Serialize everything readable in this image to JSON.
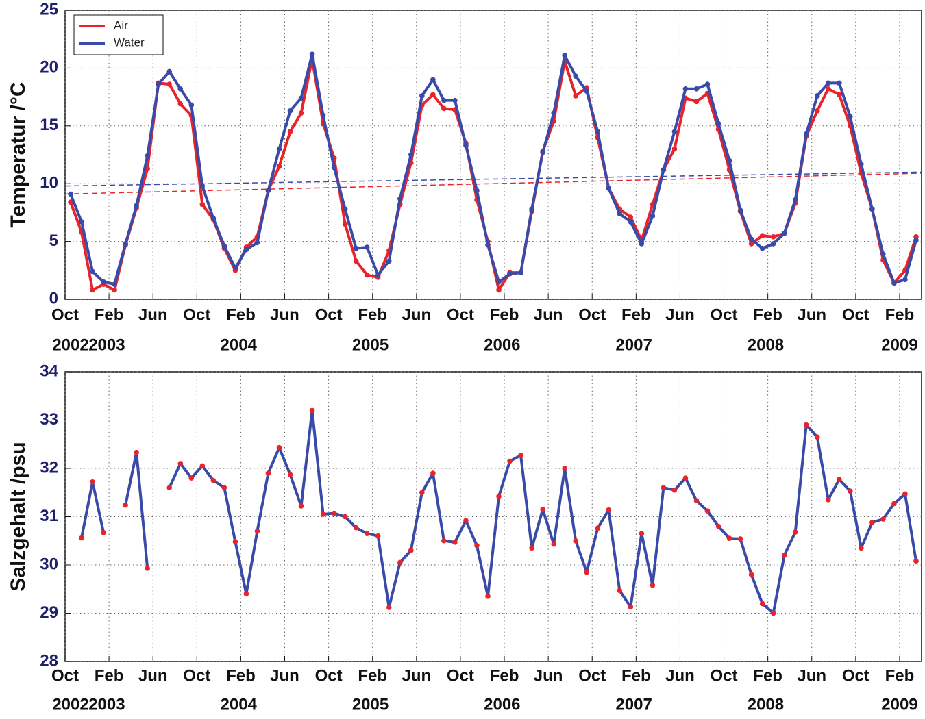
{
  "chart_data": [
    {
      "type": "line",
      "ylabel": "Temperatur /°C",
      "x": [
        0.5,
        1.5,
        2.5,
        3.5,
        4.5,
        5.5,
        6.5,
        7.5,
        8.5,
        9.5,
        10.5,
        11.5,
        12.5,
        13.5,
        14.5,
        15.5,
        16.5,
        17.5,
        18.5,
        19.5,
        20.5,
        21.5,
        22.5,
        23.5,
        24.5,
        25.5,
        26.5,
        27.5,
        28.5,
        29.5,
        30.5,
        31.5,
        32.5,
        33.5,
        34.5,
        35.5,
        36.5,
        37.5,
        38.5,
        39.5,
        40.5,
        41.5,
        42.5,
        43.5,
        44.5,
        45.5,
        46.5,
        47.5,
        48.5,
        49.5,
        50.5,
        51.5,
        52.5,
        53.5,
        54.5,
        55.5,
        56.5,
        57.5,
        58.5,
        59.5,
        60.5,
        61.5,
        62.5,
        63.5,
        64.5,
        65.5,
        66.5,
        67.5,
        68.5,
        69.5,
        70.5,
        71.5,
        72.5,
        73.5,
        74.5,
        75.5,
        76.5,
        77.5
      ],
      "series": [
        {
          "name": "Air",
          "color": "#e8232a",
          "values": [
            8.4,
            5.8,
            0.8,
            1.3,
            0.8,
            4.7,
            7.9,
            11.3,
            18.7,
            18.6,
            16.9,
            15.9,
            8.2,
            6.9,
            4.4,
            2.5,
            4.5,
            5.4,
            9.4,
            11.5,
            14.5,
            16.1,
            20.8,
            15.2,
            12.2,
            6.5,
            3.3,
            2.1,
            1.9,
            4.2,
            8.2,
            11.8,
            16.8,
            17.7,
            16.5,
            16.4,
            13.5,
            8.6,
            5.0,
            0.8,
            2.3,
            2.3,
            7.6,
            12.8,
            15.4,
            20.6,
            17.6,
            18.3,
            14.0,
            9.6,
            7.8,
            7.1,
            5.1,
            8.2,
            11.2,
            13.0,
            17.4,
            17.1,
            17.8,
            14.7,
            11.2,
            7.6,
            4.8,
            5.5,
            5.4,
            5.7,
            8.3,
            14.1,
            16.3,
            18.2,
            17.7,
            15.0,
            10.9,
            7.8,
            3.4,
            1.4,
            2.5,
            5.4
          ]
        },
        {
          "name": "Water",
          "color": "#3a4aa8",
          "values": [
            9.1,
            6.7,
            2.4,
            1.5,
            1.3,
            4.8,
            8.1,
            12.4,
            18.6,
            19.7,
            18.2,
            16.8,
            9.8,
            7.0,
            4.6,
            2.7,
            4.3,
            4.9,
            9.4,
            13.0,
            16.3,
            17.4,
            21.2,
            15.9,
            11.4,
            7.8,
            4.4,
            4.5,
            2.1,
            3.3,
            8.7,
            12.5,
            17.6,
            19.0,
            17.2,
            17.2,
            13.3,
            9.4,
            4.7,
            1.5,
            2.2,
            2.3,
            7.8,
            12.7,
            16.1,
            21.1,
            19.3,
            18.0,
            14.5,
            9.6,
            7.4,
            6.7,
            4.8,
            7.2,
            11.2,
            14.5,
            18.2,
            18.2,
            18.6,
            15.2,
            12.0,
            7.7,
            5.2,
            4.4,
            4.8,
            5.7,
            8.6,
            14.3,
            17.6,
            18.7,
            18.7,
            15.8,
            11.7,
            7.8,
            3.9,
            1.4,
            1.7,
            5.1
          ]
        }
      ],
      "trends": [
        {
          "color": "#e8232a",
          "x": [
            0,
            78
          ],
          "values": [
            9.1,
            10.9
          ],
          "dashed": true
        },
        {
          "color": "#3a4aa8",
          "x": [
            0,
            78
          ],
          "values": [
            9.8,
            11.0
          ],
          "dashed": true
        }
      ],
      "legend": "upper left",
      "xlim": [
        0,
        78
      ],
      "ylim": [
        0,
        25
      ],
      "yticks": [
        0,
        5,
        10,
        15,
        20,
        25
      ],
      "grid": true,
      "xticks": [
        {
          "value": 0,
          "label": "Oct"
        },
        {
          "value": 4,
          "label": "Feb"
        },
        {
          "value": 8,
          "label": "Jun"
        },
        {
          "value": 12,
          "label": "Oct"
        },
        {
          "value": 16,
          "label": "Feb"
        },
        {
          "value": 20,
          "label": "Jun"
        },
        {
          "value": 24,
          "label": "Oct"
        },
        {
          "value": 28,
          "label": "Feb"
        },
        {
          "value": 32,
          "label": "Jun"
        },
        {
          "value": 36,
          "label": "Oct"
        },
        {
          "value": 40,
          "label": "Feb"
        },
        {
          "value": 44,
          "label": "Jun"
        },
        {
          "value": 48,
          "label": "Oct"
        },
        {
          "value": 52,
          "label": "Feb"
        },
        {
          "value": 56,
          "label": "Jun"
        },
        {
          "value": 60,
          "label": "Oct"
        },
        {
          "value": 64,
          "label": "Feb"
        },
        {
          "value": 68,
          "label": "Jun"
        },
        {
          "value": 72,
          "label": "Oct"
        },
        {
          "value": 76,
          "label": "Feb"
        }
      ],
      "year_labels": [
        {
          "value": 0.5,
          "label": "2002"
        },
        {
          "value": 3.8,
          "label": "2003"
        },
        {
          "value": 15.8,
          "label": "2004"
        },
        {
          "value": 27.8,
          "label": "2005"
        },
        {
          "value": 39.8,
          "label": "2006"
        },
        {
          "value": 51.8,
          "label": "2007"
        },
        {
          "value": 63.8,
          "label": "2008"
        },
        {
          "value": 76,
          "label": "2009"
        }
      ]
    },
    {
      "type": "line",
      "ylabel": "Salzgehalt /psu",
      "x": [
        0.5,
        1.5,
        2.5,
        3.5,
        4.5,
        5.5,
        6.5,
        7.5,
        8.5,
        9.5,
        10.5,
        11.5,
        12.5,
        13.5,
        14.5,
        15.5,
        16.5,
        17.5,
        18.5,
        19.5,
        20.5,
        21.5,
        22.5,
        23.5,
        24.5,
        25.5,
        26.5,
        27.5,
        28.5,
        29.5,
        30.5,
        31.5,
        32.5,
        33.5,
        34.5,
        35.5,
        36.5,
        37.5,
        38.5,
        39.5,
        40.5,
        41.5,
        42.5,
        43.5,
        44.5,
        45.5,
        46.5,
        47.5,
        48.5,
        49.5,
        50.5,
        51.5,
        52.5,
        53.5,
        54.5,
        55.5,
        56.5,
        57.5,
        58.5,
        59.5,
        60.5,
        61.5,
        62.5,
        63.5,
        64.5,
        65.5,
        66.5,
        67.5,
        68.5,
        69.5,
        70.5,
        71.5,
        72.5,
        73.5,
        74.5,
        75.5,
        76.5,
        77.5
      ],
      "series": [
        {
          "color": "#3a4aa8",
          "marker_color": "#e8232a",
          "values": [
            null,
            30.56,
            31.72,
            30.67,
            null,
            31.24,
            32.33,
            29.93,
            null,
            31.6,
            32.1,
            31.8,
            32.05,
            31.75,
            31.6,
            30.48,
            29.4,
            30.7,
            31.9,
            32.43,
            31.87,
            31.22,
            33.2,
            31.05,
            31.07,
            31.0,
            30.77,
            30.65,
            30.6,
            29.12,
            30.05,
            30.3,
            31.5,
            31.9,
            30.5,
            30.47,
            30.92,
            30.4,
            29.35,
            31.42,
            32.15,
            32.27,
            30.35,
            31.15,
            30.43,
            32.0,
            30.5,
            29.85,
            30.76,
            31.14,
            29.47,
            29.13,
            30.65,
            29.58,
            31.6,
            31.55,
            31.8,
            31.33,
            31.12,
            30.8,
            30.55,
            30.54,
            29.8,
            29.2,
            29.0,
            30.2,
            30.68,
            32.9,
            32.65,
            31.35,
            31.77,
            31.53,
            30.35,
            30.88,
            30.95,
            31.27,
            31.47,
            30.08
          ]
        }
      ],
      "xlim": [
        0,
        78
      ],
      "ylim": [
        28,
        34
      ],
      "yticks": [
        28,
        29,
        30,
        31,
        32,
        33,
        34
      ],
      "grid": true,
      "xticks": [
        {
          "value": 0,
          "label": "Oct"
        },
        {
          "value": 4,
          "label": "Feb"
        },
        {
          "value": 8,
          "label": "Jun"
        },
        {
          "value": 12,
          "label": "Oct"
        },
        {
          "value": 16,
          "label": "Feb"
        },
        {
          "value": 20,
          "label": "Jun"
        },
        {
          "value": 24,
          "label": "Oct"
        },
        {
          "value": 28,
          "label": "Feb"
        },
        {
          "value": 32,
          "label": "Jun"
        },
        {
          "value": 36,
          "label": "Oct"
        },
        {
          "value": 40,
          "label": "Feb"
        },
        {
          "value": 44,
          "label": "Jun"
        },
        {
          "value": 48,
          "label": "Oct"
        },
        {
          "value": 52,
          "label": "Feb"
        },
        {
          "value": 56,
          "label": "Jun"
        },
        {
          "value": 60,
          "label": "Oct"
        },
        {
          "value": 64,
          "label": "Feb"
        },
        {
          "value": 68,
          "label": "Jun"
        },
        {
          "value": 72,
          "label": "Oct"
        },
        {
          "value": 76,
          "label": "Feb"
        }
      ],
      "year_labels": [
        {
          "value": 0.5,
          "label": "2002"
        },
        {
          "value": 3.8,
          "label": "2003"
        },
        {
          "value": 15.8,
          "label": "2004"
        },
        {
          "value": 27.8,
          "label": "2005"
        },
        {
          "value": 39.8,
          "label": "2006"
        },
        {
          "value": 51.8,
          "label": "2007"
        },
        {
          "value": 63.8,
          "label": "2008"
        },
        {
          "value": 76,
          "label": "2009"
        }
      ]
    }
  ]
}
